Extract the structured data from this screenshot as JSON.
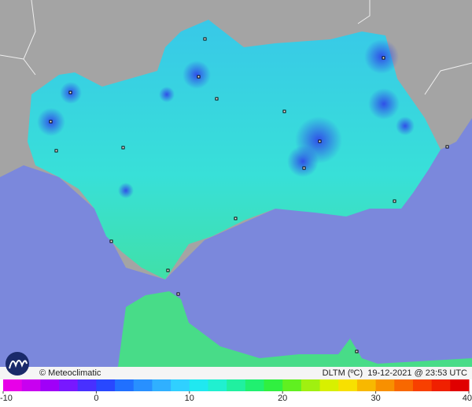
{
  "footer": {
    "credit": "© Meteoclimatic",
    "caption": "DLTM (ºC)  19-12-2021 @ 23:53 UTC"
  },
  "colorbar": {
    "lim": [
      -10,
      40
    ],
    "ticks": [
      -10,
      0,
      10,
      20,
      30,
      40
    ],
    "colors": [
      "#e800e8",
      "#c800f0",
      "#a000f8",
      "#7818ff",
      "#4830ff",
      "#2848ff",
      "#2070ff",
      "#2890ff",
      "#30b0ff",
      "#30d0ff",
      "#20e8f0",
      "#20f0d0",
      "#20f0a0",
      "#20f070",
      "#30f040",
      "#60f020",
      "#a0f010",
      "#d8f000",
      "#f8e000",
      "#f8b800",
      "#f89000",
      "#f86800",
      "#f84000",
      "#f02000",
      "#e00000"
    ]
  }
}
